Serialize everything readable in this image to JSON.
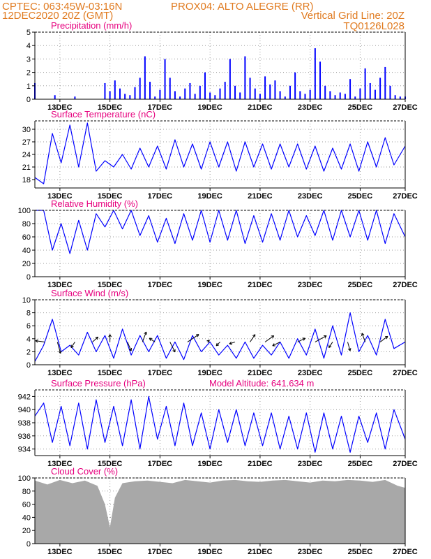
{
  "header": {
    "line1_left": "CPTEC:   063:45W-03:16N",
    "line1_right": "PROX04: ALTO ALEGRE (RR)",
    "line2_left": "12DEC2020 20Z (GMT)",
    "line2_right": "Vertical Grid Line: 20Z",
    "line3_right": "TQ0126L028"
  },
  "colors": {
    "header": "#e07a1f",
    "title": "#e6007e",
    "series": "#0000ff",
    "wind_arrow": "#000000",
    "cloud": "#a8a8a8",
    "grid": "#999999"
  },
  "chart_data": [
    {
      "type": "bar",
      "title": "Precipitation (mm/h)",
      "x_tick_labels": [
        "13DEC",
        "15DEC",
        "17DEC",
        "19DEC",
        "21DEC",
        "23DEC",
        "25DEC",
        "27DEC"
      ],
      "ylim": [
        0,
        5
      ],
      "yticks": [
        0,
        1,
        2,
        3,
        4,
        5
      ],
      "grid": true,
      "values_note": "hourly",
      "x": [
        0.0,
        0.8,
        1.6,
        2.8,
        3.0,
        3.2,
        3.4,
        3.6,
        3.8,
        4.0,
        4.2,
        4.4,
        4.6,
        4.8,
        5.0,
        5.2,
        5.4,
        5.6,
        5.8,
        6.0,
        6.2,
        6.4,
        6.6,
        6.8,
        7.0,
        7.2,
        7.4,
        7.6,
        7.8,
        8.0,
        8.2,
        8.4,
        8.6,
        8.8,
        9.0,
        9.2,
        9.4,
        9.6,
        9.8,
        10.0,
        10.2,
        10.4,
        10.6,
        10.8,
        11.0,
        11.2,
        11.4,
        11.6,
        11.8,
        12.0,
        12.2,
        12.4,
        12.6,
        12.8,
        13.0,
        13.2,
        13.4,
        13.6,
        13.8,
        14.0,
        14.2,
        14.4,
        14.6,
        14.8
      ],
      "values": [
        1.2,
        0.3,
        0.2,
        1.2,
        0.6,
        1.4,
        0.8,
        0.4,
        0.3,
        0.9,
        1.6,
        3.2,
        1.3,
        0.2,
        0.7,
        3.0,
        1.6,
        0.6,
        0.2,
        0.8,
        1.2,
        0.4,
        1.0,
        2.0,
        0.5,
        0.3,
        0.8,
        1.3,
        3.0,
        1.0,
        0.5,
        3.2,
        1.6,
        0.8,
        0.4,
        1.7,
        1.1,
        1.4,
        0.6,
        0.2,
        1.0,
        2.0,
        0.6,
        0.4,
        0.7,
        3.8,
        2.8,
        1.0,
        0.6,
        0.3,
        0.5,
        0.4,
        1.5,
        0.2,
        0.8,
        2.3,
        1.2,
        0.7,
        1.6,
        2.4,
        1.0,
        0.3,
        0.2,
        0.2
      ]
    },
    {
      "type": "line",
      "title": "Surface Temperature (nC)",
      "x_tick_labels": [
        "13DEC",
        "15DEC",
        "17DEC",
        "19DEC",
        "21DEC",
        "23DEC",
        "25DEC",
        "27DEC"
      ],
      "ylim": [
        16,
        32
      ],
      "yticks": [
        18,
        21,
        24,
        27,
        30
      ],
      "grid": true,
      "x": [
        0.0,
        0.35,
        0.7,
        1.05,
        1.4,
        1.75,
        2.1,
        2.45,
        2.8,
        3.15,
        3.5,
        3.85,
        4.2,
        4.55,
        4.9,
        5.25,
        5.6,
        5.95,
        6.3,
        6.65,
        7.0,
        7.35,
        7.7,
        8.05,
        8.4,
        8.75,
        9.1,
        9.45,
        9.8,
        10.15,
        10.5,
        10.85,
        11.2,
        11.55,
        11.9,
        12.25,
        12.6,
        12.95,
        13.3,
        13.65,
        14.0,
        14.35,
        14.8
      ],
      "values": [
        18.5,
        17.0,
        29.0,
        22.0,
        31.0,
        21.0,
        31.5,
        20.0,
        22.5,
        21.0,
        24.0,
        20.5,
        25.5,
        21.0,
        26.0,
        20.5,
        27.5,
        21.0,
        26.5,
        20.5,
        27.0,
        21.0,
        27.0,
        20.0,
        27.0,
        21.0,
        26.5,
        20.5,
        26.5,
        21.0,
        26.5,
        20.5,
        26.0,
        20.0,
        25.5,
        20.5,
        26.5,
        20.0,
        27.0,
        21.0,
        28.0,
        21.5,
        26.0
      ]
    },
    {
      "type": "line",
      "title": "Relative Humidity (%)",
      "x_tick_labels": [
        "13DEC",
        "15DEC",
        "17DEC",
        "19DEC",
        "21DEC",
        "23DEC",
        "25DEC",
        "27DEC"
      ],
      "ylim": [
        0,
        100
      ],
      "yticks": [
        0,
        20,
        40,
        60,
        80,
        100
      ],
      "grid": true,
      "x": [
        0.0,
        0.35,
        0.7,
        1.05,
        1.4,
        1.75,
        2.1,
        2.45,
        2.8,
        3.15,
        3.5,
        3.85,
        4.2,
        4.55,
        4.9,
        5.25,
        5.6,
        5.95,
        6.3,
        6.65,
        7.0,
        7.35,
        7.7,
        8.05,
        8.4,
        8.75,
        9.1,
        9.45,
        9.8,
        10.15,
        10.5,
        10.85,
        11.2,
        11.55,
        11.9,
        12.25,
        12.6,
        12.95,
        13.3,
        13.65,
        14.0,
        14.35,
        14.8
      ],
      "values": [
        100,
        100,
        40,
        80,
        35,
        85,
        40,
        95,
        75,
        100,
        72,
        100,
        62,
        92,
        52,
        88,
        50,
        95,
        55,
        100,
        52,
        100,
        55,
        100,
        50,
        92,
        52,
        95,
        55,
        100,
        60,
        92,
        62,
        100,
        55,
        100,
        60,
        100,
        55,
        100,
        50,
        95,
        60
      ]
    },
    {
      "type": "line",
      "title": "Surface Wind (m/s)",
      "x_tick_labels": [
        "13DEC",
        "15DEC",
        "17DEC",
        "19DEC",
        "21DEC",
        "23DEC",
        "25DEC",
        "27DEC"
      ],
      "ylim": [
        0,
        10
      ],
      "yticks": [
        0,
        2,
        4,
        6,
        8,
        10
      ],
      "grid": true,
      "x": [
        0.0,
        0.35,
        0.7,
        1.05,
        1.4,
        1.75,
        2.1,
        2.45,
        2.8,
        3.15,
        3.5,
        3.85,
        4.2,
        4.55,
        4.9,
        5.25,
        5.6,
        5.95,
        6.3,
        6.65,
        7.0,
        7.35,
        7.7,
        8.05,
        8.4,
        8.75,
        9.1,
        9.45,
        9.8,
        10.15,
        10.5,
        10.85,
        11.2,
        11.55,
        11.9,
        12.25,
        12.6,
        12.95,
        13.3,
        13.65,
        14.0,
        14.35,
        14.8
      ],
      "values": [
        0.5,
        3.0,
        7.0,
        2.0,
        3.0,
        1.5,
        5.0,
        2.0,
        4.5,
        1.0,
        5.5,
        1.5,
        4.5,
        2.0,
        4.5,
        1.0,
        3.5,
        0.8,
        4.5,
        2.0,
        3.5,
        1.5,
        3.0,
        1.0,
        3.5,
        1.0,
        3.0,
        1.5,
        3.5,
        1.0,
        4.0,
        1.5,
        5.5,
        1.0,
        6.0,
        1.5,
        8.0,
        2.0,
        4.5,
        1.5,
        7.0,
        2.5,
        3.5
      ],
      "arrows": [
        {
          "x": 0.4,
          "u": -1.5,
          "v": 0.2
        },
        {
          "x": 0.9,
          "u": 0.5,
          "v": -1.8
        },
        {
          "x": 1.6,
          "u": -0.6,
          "v": -0.9
        },
        {
          "x": 2.3,
          "u": 0.9,
          "v": 0.8
        },
        {
          "x": 3.0,
          "u": 0.0,
          "v": 1.2
        },
        {
          "x": 3.7,
          "u": 0.6,
          "v": -1.4
        },
        {
          "x": 4.3,
          "u": 0.6,
          "v": 1.6
        },
        {
          "x": 4.8,
          "u": -0.9,
          "v": 0.6
        },
        {
          "x": 5.4,
          "u": 0.8,
          "v": -1.6
        },
        {
          "x": 6.1,
          "u": 1.8,
          "v": 1.2
        },
        {
          "x": 6.9,
          "u": 0.3,
          "v": 0.3
        },
        {
          "x": 7.4,
          "u": -0.6,
          "v": -0.6
        },
        {
          "x": 8.0,
          "u": -0.9,
          "v": -0.3
        },
        {
          "x": 8.6,
          "u": 0.8,
          "v": 1.2
        },
        {
          "x": 9.2,
          "u": 1.4,
          "v": 1.0
        },
        {
          "x": 9.8,
          "u": -1.2,
          "v": -0.6
        },
        {
          "x": 10.5,
          "u": 1.2,
          "v": 0.6
        },
        {
          "x": 11.2,
          "u": 1.8,
          "v": 1.0
        },
        {
          "x": 11.9,
          "u": -0.6,
          "v": -0.9
        },
        {
          "x": 12.5,
          "u": 0.4,
          "v": -1.4
        },
        {
          "x": 13.2,
          "u": -0.5,
          "v": 1.4
        },
        {
          "x": 13.8,
          "u": 1.2,
          "v": 0.9
        }
      ]
    },
    {
      "type": "line",
      "title": "Surface Pressure (hPa)",
      "annotation": "Model Altitude: 641.634 m",
      "x_tick_labels": [
        "13DEC",
        "15DEC",
        "17DEC",
        "19DEC",
        "21DEC",
        "23DEC",
        "25DEC",
        "27DEC"
      ],
      "ylim": [
        933,
        943
      ],
      "yticks": [
        934,
        936,
        938,
        940,
        942
      ],
      "grid": true,
      "x": [
        0.0,
        0.35,
        0.7,
        1.05,
        1.4,
        1.75,
        2.1,
        2.45,
        2.8,
        3.15,
        3.5,
        3.85,
        4.2,
        4.55,
        4.9,
        5.25,
        5.6,
        5.95,
        6.3,
        6.65,
        7.0,
        7.35,
        7.7,
        8.05,
        8.4,
        8.75,
        9.1,
        9.45,
        9.8,
        10.15,
        10.5,
        10.85,
        11.2,
        11.55,
        11.9,
        12.25,
        12.6,
        12.95,
        13.3,
        13.65,
        14.0,
        14.35,
        14.8
      ],
      "values": [
        939.0,
        941.0,
        935.0,
        940.5,
        934.5,
        941.0,
        934.0,
        941.5,
        935.0,
        940.5,
        934.5,
        941.5,
        934.0,
        942.0,
        935.5,
        940.5,
        934.5,
        941.0,
        934.5,
        939.5,
        934.0,
        940.0,
        935.0,
        940.0,
        934.5,
        939.5,
        934.5,
        939.5,
        934.0,
        939.0,
        934.0,
        939.5,
        933.5,
        939.5,
        934.0,
        939.0,
        933.5,
        939.0,
        935.0,
        939.5,
        934.0,
        940.0,
        935.5
      ]
    },
    {
      "type": "area",
      "title": "Cloud Cover (%)",
      "x_tick_labels": [
        "13DEC",
        "15DEC",
        "17DEC",
        "19DEC",
        "21DEC",
        "23DEC",
        "25DEC",
        "27DEC"
      ],
      "ylim": [
        0,
        100
      ],
      "yticks": [
        0,
        20,
        40,
        60,
        80,
        100
      ],
      "grid": true,
      "x": [
        0.0,
        0.5,
        1.0,
        1.5,
        2.0,
        2.5,
        2.8,
        3.0,
        3.2,
        3.5,
        4.0,
        4.5,
        5.0,
        5.5,
        6.0,
        6.5,
        7.0,
        7.5,
        8.0,
        8.5,
        9.0,
        9.5,
        10.0,
        10.5,
        11.0,
        11.5,
        12.0,
        12.5,
        13.0,
        13.5,
        14.0,
        14.5,
        14.8
      ],
      "values": [
        96,
        90,
        97,
        92,
        96,
        88,
        60,
        25,
        70,
        92,
        95,
        96,
        94,
        92,
        97,
        95,
        93,
        96,
        97,
        95,
        94,
        96,
        97,
        95,
        93,
        96,
        95,
        97,
        96,
        94,
        97,
        88,
        85
      ]
    }
  ]
}
